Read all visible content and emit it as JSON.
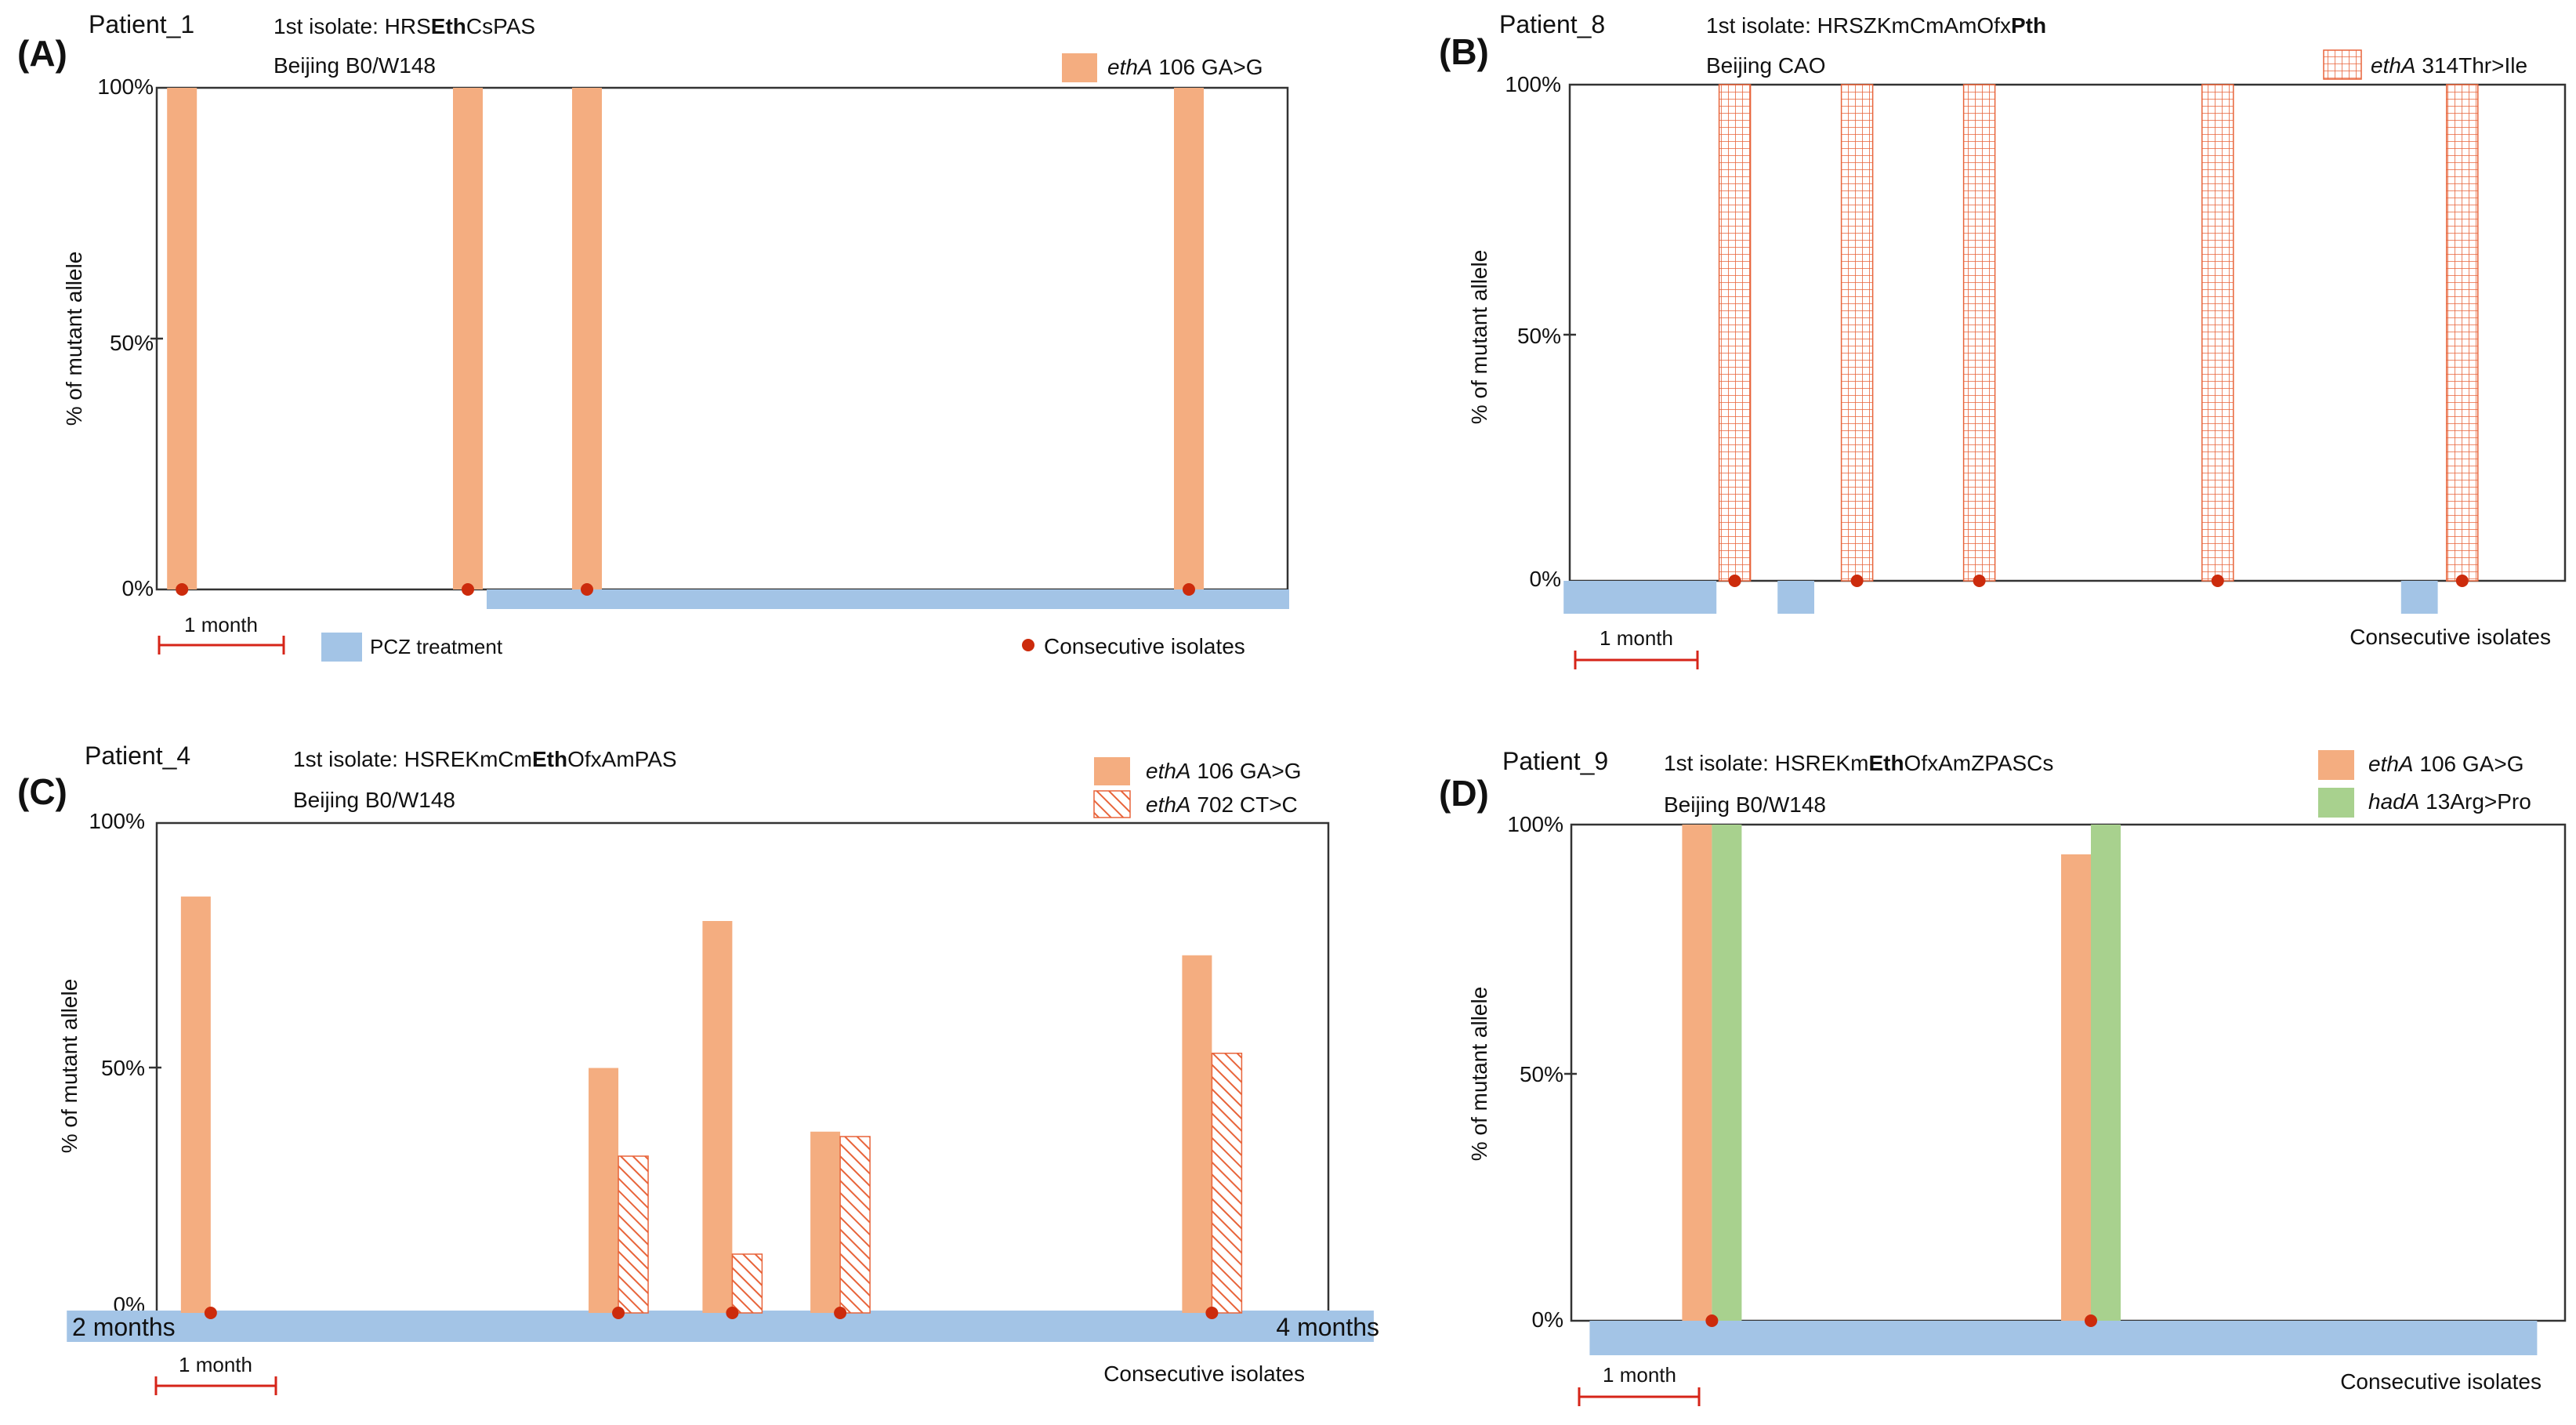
{
  "figure": {
    "colors": {
      "ethA_106": "#f4ad80",
      "hatch_orange": "#e8643a",
      "hadA": "#a8d18e",
      "treatment": "#a3c4e6",
      "isolate_dot": "#cc2b0c",
      "scale_bar": "#d62418"
    },
    "ylabel": "% of mutant allele",
    "yticks": [
      "0%",
      "50%",
      "100%"
    ],
    "scale_label": "1 month",
    "consecutive_label": "Consecutive isolates"
  },
  "panels": [
    {
      "letter": "(A)",
      "patient": "Patient_1",
      "isolate_prefix": "1st isolate: ",
      "isolate_pre": "HRS",
      "isolate_bold": "Eth",
      "isolate_post": "CsPAS",
      "lineage": "Beijing B0/W148",
      "legend": [
        {
          "gene": "ethA",
          "mutation": " 106 GA>G",
          "style": "solid"
        }
      ],
      "treatment_label": "PCZ treatment",
      "left_label": "",
      "right_label": ""
    },
    {
      "letter": "(B)",
      "patient": "Patient_8",
      "isolate_prefix": "1st isolate: ",
      "isolate_pre": "HRSZKmCmAmOfx",
      "isolate_bold": "Pth",
      "isolate_post": "",
      "lineage": "Beijing CAO",
      "legend": [
        {
          "gene": "ethA",
          "mutation": " 314Thr>Ile",
          "style": "grid"
        }
      ],
      "treatment_label": "",
      "left_label": "",
      "right_label": ""
    },
    {
      "letter": "(C)",
      "patient": "Patient_4",
      "isolate_prefix": "1st isolate: ",
      "isolate_pre": "HSREKmCm",
      "isolate_bold": "Eth",
      "isolate_post": "OfxAmPAS",
      "lineage": "Beijing B0/W148",
      "legend": [
        {
          "gene": "ethA",
          "mutation": " 106 GA>G",
          "style": "solid"
        },
        {
          "gene": "ethA",
          "mutation": " 702 CT>C",
          "style": "hatch"
        }
      ],
      "treatment_label": "",
      "left_label": "2 months",
      "right_label": "4 months"
    },
    {
      "letter": "(D)",
      "patient": "Patient_9",
      "isolate_prefix": "1st isolate: ",
      "isolate_pre": "HSREKm",
      "isolate_bold": "Eth",
      "isolate_post": "OfxAmZPASCs",
      "lineage": "Beijing B0/W148",
      "legend": [
        {
          "gene": "ethA",
          "mutation": " 106 GA>G",
          "style": "solid"
        },
        {
          "gene": "hadA",
          "mutation": " 13Arg>Pro",
          "style": "green"
        }
      ],
      "treatment_label": "",
      "left_label": "",
      "right_label": ""
    }
  ],
  "chart_data": [
    {
      "type": "bar",
      "title": "(A) Patient_1",
      "ylabel": "% of mutant allele",
      "ylim": [
        0,
        100
      ],
      "x_unit": "months",
      "xlim": [
        0,
        9.0
      ],
      "month_scale": 1,
      "series": [
        {
          "name": "ethA 106 GA>G",
          "style": "solid",
          "x": [
            0.17,
            2.45,
            3.4,
            8.2
          ],
          "values": [
            100,
            100,
            100,
            100
          ]
        }
      ],
      "isolates": [
        0.17,
        2.45,
        3.4,
        8.2
      ],
      "treatment": [
        {
          "start": 2.6,
          "end": 9.0
        }
      ]
    },
    {
      "type": "bar",
      "title": "(B) Patient_8",
      "ylabel": "% of mutant allele",
      "ylim": [
        0,
        100
      ],
      "x_unit": "months",
      "xlim": [
        0,
        7.65
      ],
      "month_scale": 1,
      "series": [
        {
          "name": "ethA 314Thr>Ile",
          "style": "grid",
          "x": [
            1.35,
            2.35,
            3.35,
            5.3,
            7.3
          ],
          "values": [
            100,
            100,
            100,
            100,
            100
          ]
        }
      ],
      "isolates": [
        1.35,
        2.35,
        3.35,
        5.3,
        7.3
      ],
      "treatment": [
        {
          "start": -0.05,
          "end": 1.2
        },
        {
          "start": 1.7,
          "end": 2.0
        },
        {
          "start": 6.8,
          "end": 7.1
        }
      ]
    },
    {
      "type": "bar",
      "title": "(C) Patient_4",
      "ylabel": "% of mutant allele",
      "ylim": [
        0,
        100
      ],
      "x_unit": "months",
      "xlim": [
        0,
        9.7
      ],
      "month_scale": 1,
      "series": [
        {
          "name": "ethA 106 GA>G",
          "style": "solid",
          "x": [
            0.45,
            3.85,
            4.8,
            5.7,
            8.8
          ],
          "values": [
            85,
            50,
            80,
            37,
            73
          ]
        },
        {
          "name": "ethA 702 CT>C",
          "style": "hatch",
          "x": [
            3.85,
            4.8,
            5.7,
            8.8
          ],
          "values": [
            32,
            12,
            36,
            53
          ]
        }
      ],
      "isolates": [
        0.45,
        3.85,
        4.8,
        5.7,
        8.8
      ],
      "treatment": [
        {
          "start": -0.75,
          "end": 10.15
        }
      ]
    },
    {
      "type": "bar",
      "title": "(D) Patient_9",
      "ylabel": "% of mutant allele",
      "ylim": [
        0,
        100
      ],
      "x_unit": "months",
      "xlim": [
        0,
        7.9
      ],
      "month_scale": 1,
      "series": [
        {
          "name": "ethA 106 GA>G",
          "style": "solid",
          "x": [
            1.15,
            4.25
          ],
          "values": [
            100,
            94
          ]
        },
        {
          "name": "hadA 13Arg>Pro",
          "style": "green",
          "x": [
            1.15,
            4.25
          ],
          "values": [
            100,
            100
          ]
        }
      ],
      "isolates": [
        1.15,
        4.25
      ],
      "treatment": [
        {
          "start": 0.15,
          "end": 7.9
        }
      ]
    }
  ]
}
